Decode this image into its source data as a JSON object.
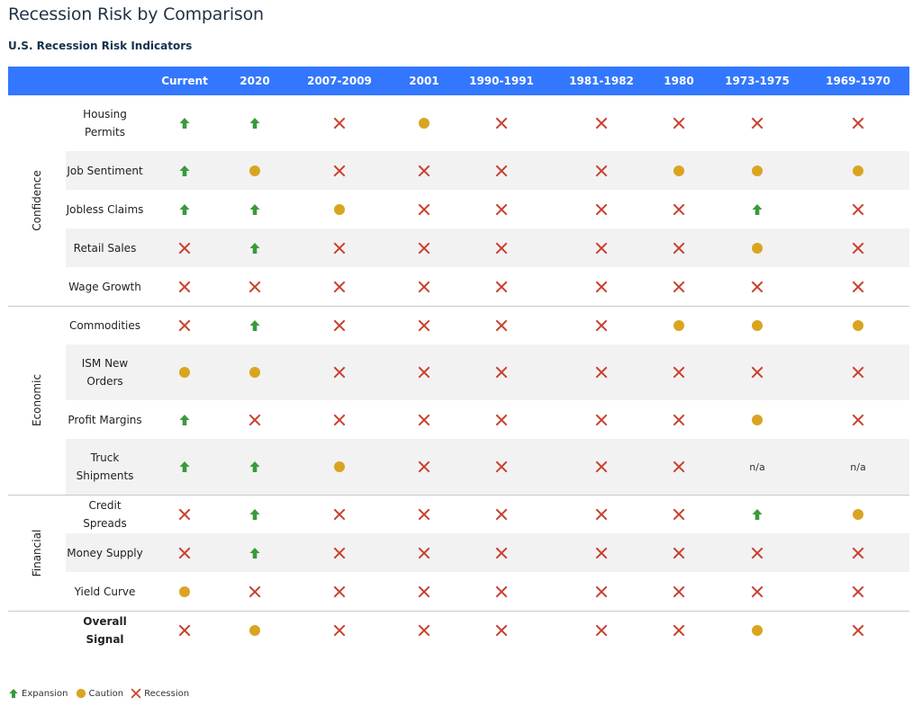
{
  "page": {
    "title": "Recession Risk by Comparison",
    "subtitle": "U.S. Recession Risk Indicators"
  },
  "colors": {
    "header_bg": "#3377ff",
    "expansion": "#3a9a3a",
    "caution": "#d9a520",
    "recession": "#c8402e",
    "shade": "#f2f2f2"
  },
  "legend": [
    {
      "key": "E",
      "label": "Expansion",
      "icon": "arrow-up-icon"
    },
    {
      "key": "C",
      "label": "Caution",
      "icon": "circle-icon"
    },
    {
      "key": "R",
      "label": "Recession",
      "icon": "x-icon"
    }
  ],
  "chart_data": {
    "type": "table",
    "columns": [
      "Current",
      "2020",
      "2007-2009",
      "2001",
      "1990-1991",
      "1981-1982",
      "1980",
      "1973-1975",
      "1969-1970"
    ],
    "status_codes": {
      "E": "Expansion",
      "C": "Caution",
      "R": "Recession",
      "NA": "n/a"
    },
    "groups": [
      {
        "name": "Confidence",
        "rows": [
          {
            "label": "Housing Permits",
            "values": [
              "E",
              "E",
              "R",
              "C",
              "R",
              "R",
              "R",
              "R",
              "R"
            ]
          },
          {
            "label": "Job Sentiment",
            "values": [
              "E",
              "C",
              "R",
              "R",
              "R",
              "R",
              "C",
              "C",
              "C"
            ]
          },
          {
            "label": "Jobless Claims",
            "values": [
              "E",
              "E",
              "C",
              "R",
              "R",
              "R",
              "R",
              "E",
              "R"
            ]
          },
          {
            "label": "Retail Sales",
            "values": [
              "R",
              "E",
              "R",
              "R",
              "R",
              "R",
              "R",
              "C",
              "R"
            ]
          },
          {
            "label": "Wage Growth",
            "values": [
              "R",
              "R",
              "R",
              "R",
              "R",
              "R",
              "R",
              "R",
              "R"
            ]
          }
        ]
      },
      {
        "name": "Economic",
        "rows": [
          {
            "label": "Commodities",
            "values": [
              "R",
              "E",
              "R",
              "R",
              "R",
              "R",
              "C",
              "C",
              "C"
            ]
          },
          {
            "label": "ISM New Orders",
            "values": [
              "C",
              "C",
              "R",
              "R",
              "R",
              "R",
              "R",
              "R",
              "R"
            ]
          },
          {
            "label": "Profit Margins",
            "values": [
              "E",
              "R",
              "R",
              "R",
              "R",
              "R",
              "R",
              "C",
              "R"
            ]
          },
          {
            "label": "Truck Shipments",
            "values": [
              "E",
              "E",
              "C",
              "R",
              "R",
              "R",
              "R",
              "NA",
              "NA"
            ]
          }
        ]
      },
      {
        "name": "Financial",
        "rows": [
          {
            "label": "Credit Spreads",
            "values": [
              "R",
              "E",
              "R",
              "R",
              "R",
              "R",
              "R",
              "E",
              "C"
            ]
          },
          {
            "label": "Money Supply",
            "values": [
              "R",
              "E",
              "R",
              "R",
              "R",
              "R",
              "R",
              "R",
              "R"
            ]
          },
          {
            "label": "Yield Curve",
            "values": [
              "C",
              "R",
              "R",
              "R",
              "R",
              "R",
              "R",
              "R",
              "R"
            ]
          }
        ]
      }
    ],
    "overall": {
      "label": "Overall Signal",
      "values": [
        "R",
        "C",
        "R",
        "R",
        "R",
        "R",
        "R",
        "C",
        "R"
      ]
    },
    "na_text": "n/a"
  }
}
